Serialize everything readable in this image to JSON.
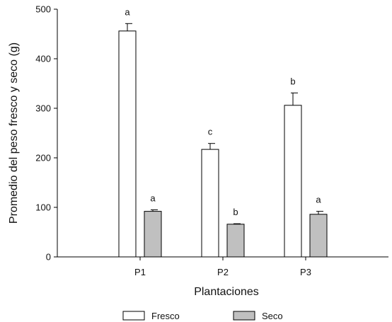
{
  "chart_data": {
    "type": "bar",
    "title": "",
    "xlabel": "Plantaciones",
    "ylabel": "Promedio del peso fresco y seco (g)",
    "ylim": [
      0,
      500
    ],
    "yticks": [
      0,
      100,
      200,
      300,
      400,
      500
    ],
    "grid": false,
    "legend_position": "bottom",
    "categories": [
      "P1",
      "P2",
      "P3"
    ],
    "series": [
      {
        "name": "Fresco",
        "fill": "#ffffff",
        "values": [
          456,
          217,
          306
        ],
        "errors": [
          15,
          12,
          25
        ],
        "labels": [
          "a",
          "c",
          "b"
        ]
      },
      {
        "name": "Seco",
        "fill": "#c0c0c0",
        "values": [
          92,
          66,
          86
        ],
        "errors": [
          3,
          1,
          6
        ],
        "labels": [
          "a",
          "b",
          "a"
        ]
      }
    ]
  }
}
